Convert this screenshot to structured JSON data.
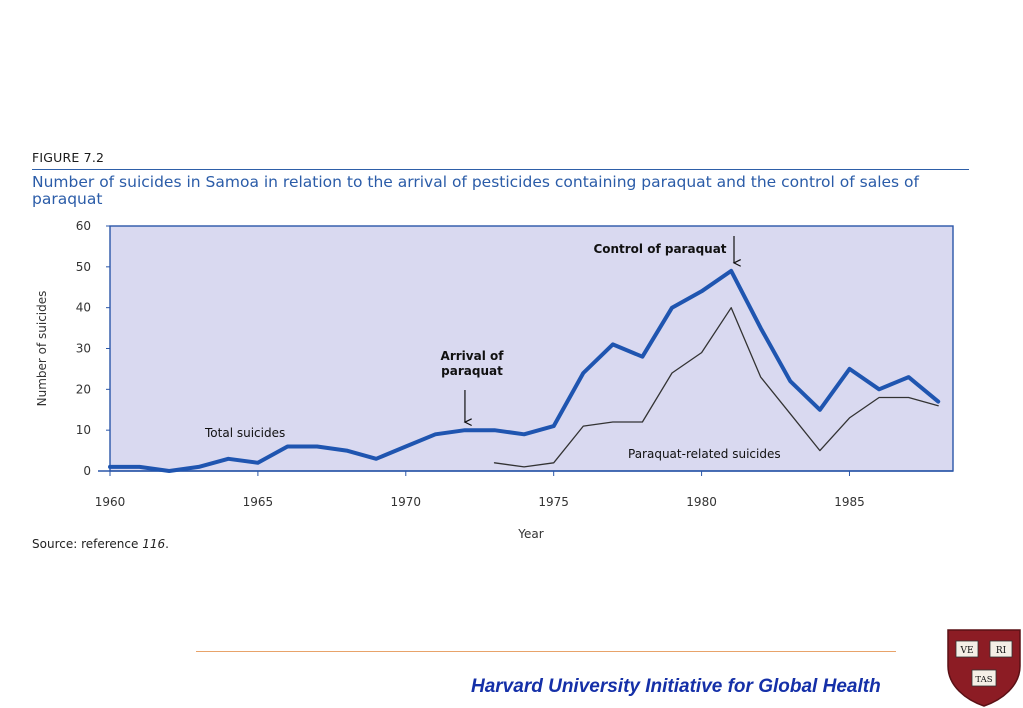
{
  "figure": {
    "label": "FIGURE 7.2",
    "title": "Number of suicides in Samoa in relation to the arrival of pesticides containing paraquat and the control of sales of paraquat",
    "source_prefix": "Source: reference",
    "source_ref": "116",
    "source_suffix": "."
  },
  "footer": {
    "text": "Harvard University Initiative for Global Health",
    "seal_letters": [
      "VE",
      "RI",
      "TAS"
    ]
  },
  "colors": {
    "plot_background": "#d9d9f0",
    "total_line": "#1f55b0",
    "paraquat_line": "#333333",
    "title_blue": "#2b5ca8",
    "footer_blue": "#1530a8",
    "footer_rule": "#e8a36a",
    "seal_crimson": "#8c1c24"
  },
  "chart_data": {
    "type": "line",
    "xlabel": "Year",
    "ylabel": "Number of suicides",
    "xlim": [
      1960,
      1988.5
    ],
    "ylim": [
      0,
      60
    ],
    "x_ticks": [
      1960,
      1965,
      1970,
      1975,
      1980,
      1985
    ],
    "y_ticks": [
      0,
      10,
      20,
      30,
      40,
      50,
      60
    ],
    "grid": false,
    "series": [
      {
        "name": "Total suicides",
        "color": "#1f55b0",
        "x": [
          1960,
          1961,
          1962,
          1963,
          1964,
          1965,
          1966,
          1967,
          1968,
          1969,
          1970,
          1971,
          1972,
          1973,
          1974,
          1975,
          1976,
          1977,
          1978,
          1979,
          1980,
          1981,
          1982,
          1983,
          1984,
          1985,
          1986,
          1987,
          1988
        ],
        "y": [
          1,
          1,
          0,
          1,
          3,
          2,
          6,
          6,
          5,
          3,
          6,
          9,
          10,
          10,
          9,
          11,
          24,
          31,
          28,
          40,
          44,
          49,
          35,
          22,
          15,
          25,
          20,
          23,
          17
        ]
      },
      {
        "name": "Paraquat-related suicides",
        "color": "#333333",
        "x": [
          1973,
          1974,
          1975,
          1976,
          1977,
          1978,
          1979,
          1980,
          1981,
          1982,
          1983,
          1984,
          1985,
          1986,
          1987,
          1988
        ],
        "y": [
          2,
          1,
          2,
          11,
          12,
          12,
          24,
          29,
          40,
          23,
          14,
          5,
          13,
          18,
          18,
          16
        ]
      }
    ],
    "annotations": [
      {
        "lines": [
          "Arrival of",
          "paraquat"
        ],
        "x": 1972,
        "y": 10,
        "arrow": true
      },
      {
        "lines": [
          "Control of paraquat"
        ],
        "x": 1981,
        "y": 49,
        "arrow": true
      }
    ]
  }
}
